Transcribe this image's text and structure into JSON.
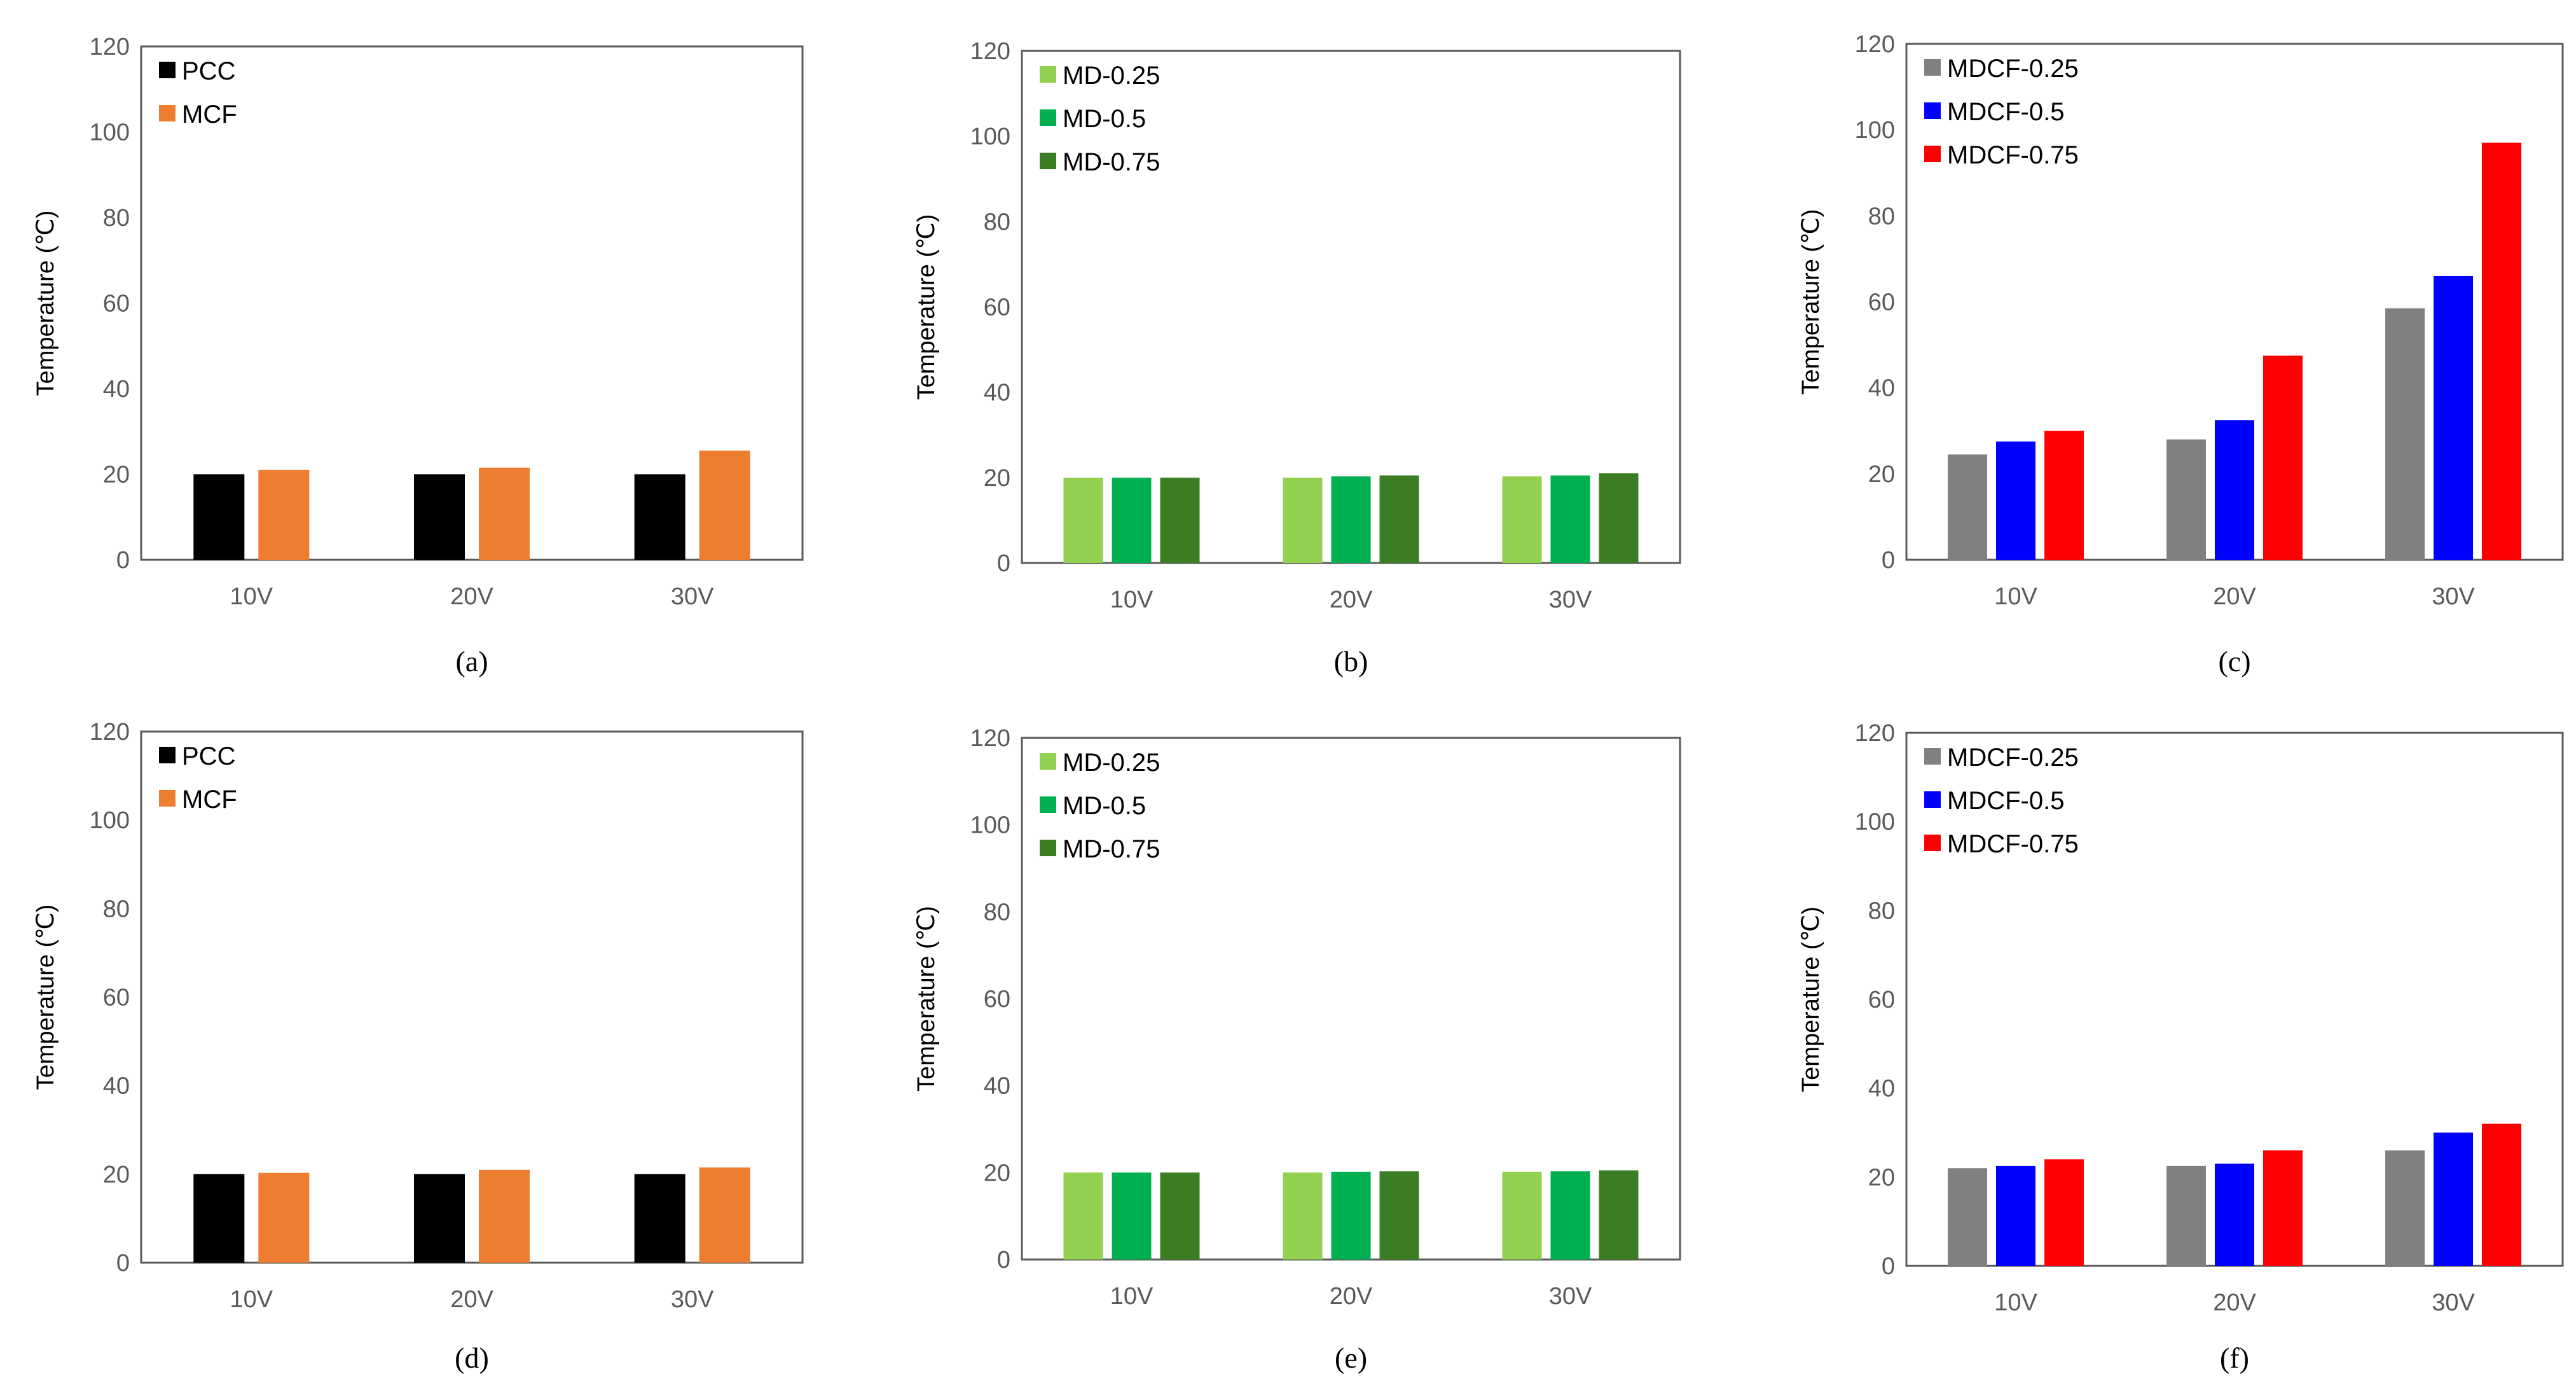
{
  "chart_data": [
    {
      "type": "bar",
      "panel": "a",
      "caption": "(a)",
      "ylabel": "Temperature (℃)",
      "ylim": [
        0,
        120
      ],
      "yticks": [
        0,
        20,
        40,
        60,
        80,
        100,
        120
      ],
      "categories": [
        "10V",
        "20V",
        "30V"
      ],
      "legend_position": "top-left",
      "series": [
        {
          "name": "PCC",
          "color": "#000000",
          "values": [
            20,
            20,
            20
          ]
        },
        {
          "name": "MCF",
          "color": "#ED7D31",
          "values": [
            21,
            21.5,
            25.5
          ]
        }
      ]
    },
    {
      "type": "bar",
      "panel": "b",
      "caption": "(b)",
      "ylabel": "Temperature (℃)",
      "ylim": [
        0,
        120
      ],
      "yticks": [
        0,
        20,
        40,
        60,
        80,
        100,
        120
      ],
      "categories": [
        "10V",
        "20V",
        "30V"
      ],
      "legend_position": "top-left",
      "series": [
        {
          "name": "MD-0.25",
          "color": "#92D050",
          "values": [
            20,
            20,
            20.3
          ]
        },
        {
          "name": "MD-0.5",
          "color": "#00B050",
          "values": [
            20,
            20.3,
            20.5
          ]
        },
        {
          "name": "MD-0.75",
          "color": "#3A7D22",
          "values": [
            20,
            20.5,
            21
          ]
        }
      ]
    },
    {
      "type": "bar",
      "panel": "c",
      "caption": "(c)",
      "ylabel": "Temperature (℃)",
      "ylim": [
        0,
        120
      ],
      "yticks": [
        0,
        20,
        40,
        60,
        80,
        100,
        120
      ],
      "categories": [
        "10V",
        "20V",
        "30V"
      ],
      "legend_position": "top-left",
      "series": [
        {
          "name": "MDCF-0.25",
          "color": "#808080",
          "values": [
            24.5,
            28,
            58.5
          ]
        },
        {
          "name": "MDCF-0.5",
          "color": "#0000FF",
          "values": [
            27.5,
            32.5,
            66
          ]
        },
        {
          "name": "MDCF-0.75",
          "color": "#FF0000",
          "values": [
            30,
            47.5,
            97
          ]
        }
      ]
    },
    {
      "type": "bar",
      "panel": "d",
      "caption": "(d)",
      "ylabel": "Temperature (℃)",
      "ylim": [
        0,
        120
      ],
      "yticks": [
        0,
        20,
        40,
        60,
        80,
        100,
        120
      ],
      "categories": [
        "10V",
        "20V",
        "30V"
      ],
      "legend_position": "top-left",
      "series": [
        {
          "name": "PCC",
          "color": "#000000",
          "values": [
            20,
            20,
            20
          ]
        },
        {
          "name": "MCF",
          "color": "#ED7D31",
          "values": [
            20.3,
            21,
            21.5
          ]
        }
      ]
    },
    {
      "type": "bar",
      "panel": "e",
      "caption": "(e)",
      "ylabel": "Temperature (℃)",
      "ylim": [
        0,
        120
      ],
      "yticks": [
        0,
        20,
        40,
        60,
        80,
        100,
        120
      ],
      "categories": [
        "10V",
        "20V",
        "30V"
      ],
      "legend_position": "top-left",
      "series": [
        {
          "name": "MD-0.25",
          "color": "#92D050",
          "values": [
            20,
            20,
            20.2
          ]
        },
        {
          "name": "MD-0.5",
          "color": "#00B050",
          "values": [
            20,
            20.2,
            20.3
          ]
        },
        {
          "name": "MD-0.75",
          "color": "#3A7D22",
          "values": [
            20,
            20.3,
            20.5
          ]
        }
      ]
    },
    {
      "type": "bar",
      "panel": "f",
      "caption": "(f)",
      "ylabel": "Temperature (℃)",
      "ylim": [
        0,
        120
      ],
      "yticks": [
        0,
        20,
        40,
        60,
        80,
        100,
        120
      ],
      "categories": [
        "10V",
        "20V",
        "30V"
      ],
      "legend_position": "top-left",
      "series": [
        {
          "name": "MDCF-0.25",
          "color": "#808080",
          "values": [
            22,
            22.5,
            26
          ]
        },
        {
          "name": "MDCF-0.5",
          "color": "#0000FF",
          "values": [
            22.5,
            23,
            30
          ]
        },
        {
          "name": "MDCF-0.75",
          "color": "#FF0000",
          "values": [
            24,
            26,
            32
          ]
        }
      ]
    }
  ]
}
